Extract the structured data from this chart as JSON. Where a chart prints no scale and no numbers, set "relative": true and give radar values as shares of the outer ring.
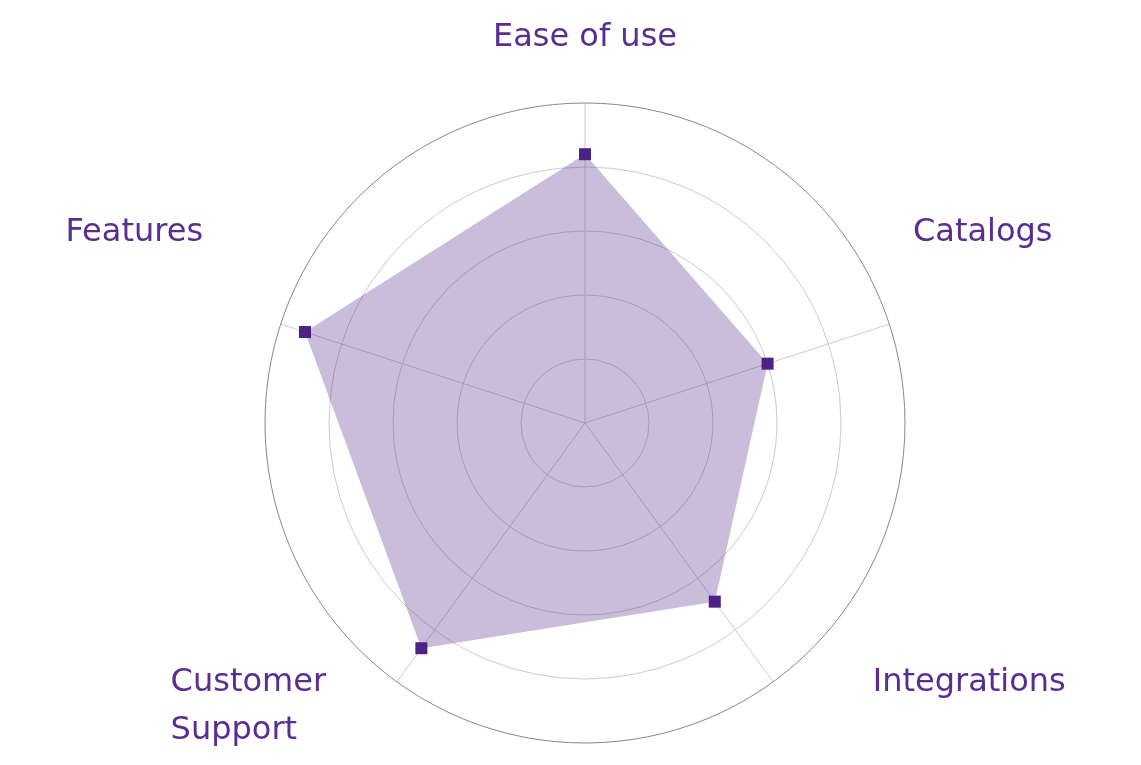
{
  "chart_data": {
    "type": "radar",
    "relative": true,
    "categories": [
      "Ease of use",
      "Catalogs",
      "Integrations",
      "Customer Support",
      "Features"
    ],
    "series": [
      {
        "color": "#4b2387",
        "values": [
          0.84,
          0.6,
          0.69,
          0.87,
          0.92
        ]
      }
    ],
    "grid": true,
    "marker": "square"
  }
}
